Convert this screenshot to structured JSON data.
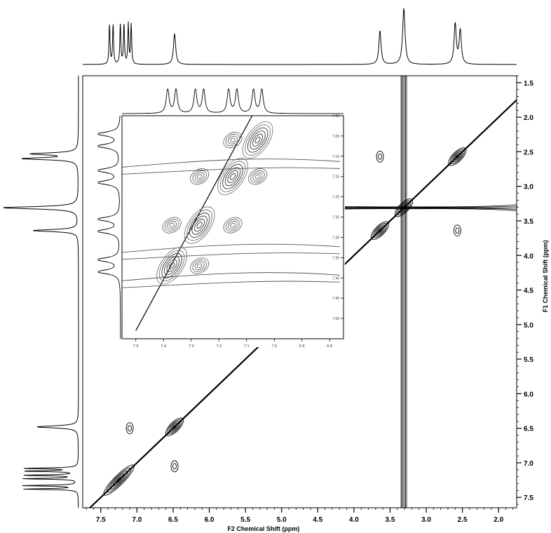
{
  "chart_data": [
    {
      "type": "contour",
      "experiment": "2D homonuclear correlation spectrum",
      "xlabel": "F2 Chemical Shift (ppm)",
      "ylabel": "F1 Chemical Shift (ppm)",
      "xlim": [
        7.75,
        1.75
      ],
      "ylim": [
        1.4,
        7.65
      ],
      "x_ticks": [
        "7.5",
        "7.0",
        "6.5",
        "6.0",
        "5.5",
        "5.0",
        "4.5",
        "4.0",
        "3.5",
        "3.0",
        "2.5",
        "2.0"
      ],
      "y_ticks": [
        "1.5",
        "2.0",
        "2.5",
        "3.0",
        "3.5",
        "4.0",
        "4.5",
        "5.0",
        "5.5",
        "6.0",
        "6.5",
        "7.0",
        "7.5"
      ],
      "x_tick_values": [
        7.5,
        7.0,
        6.5,
        6.0,
        5.5,
        5.0,
        4.5,
        4.0,
        3.5,
        3.0,
        2.5,
        2.0
      ],
      "y_tick_values": [
        1.5,
        2.0,
        2.5,
        3.0,
        3.5,
        4.0,
        4.5,
        5.0,
        5.5,
        6.0,
        6.5,
        7.0,
        7.5
      ],
      "projection_peaks_ppm": [
        7.38,
        7.33,
        7.23,
        7.18,
        7.12,
        7.08,
        6.48,
        3.64,
        3.31,
        2.6,
        2.53
      ],
      "projection_heights": [
        0.72,
        0.72,
        0.72,
        0.72,
        0.72,
        0.72,
        0.55,
        0.6,
        1.0,
        0.72,
        0.6
      ],
      "diagonal_peaks": [
        {
          "x": 7.25,
          "y": 7.25
        },
        {
          "x": 6.48,
          "y": 6.48
        },
        {
          "x": 3.64,
          "y": 3.64
        },
        {
          "x": 3.31,
          "y": 3.31
        },
        {
          "x": 2.57,
          "y": 2.57
        }
      ],
      "cross_peaks": [
        {
          "x": 3.64,
          "y": 2.57
        },
        {
          "x": 2.57,
          "y": 3.64
        },
        {
          "x": 7.1,
          "y": 6.5
        },
        {
          "x": 6.48,
          "y": 7.05
        }
      ],
      "solvent_ridge_ppm": 3.31
    },
    {
      "type": "contour",
      "role": "inset zoom of aromatic region",
      "xlim": [
        7.55,
        6.75
      ],
      "ylim": [
        7.0,
        7.55
      ],
      "x_ticks": [
        "7.5",
        "7.4",
        "7.3",
        "7.2",
        "7.1",
        "7.0",
        "6.9",
        "6.8"
      ],
      "y_ticks": [
        "7.00",
        "7.05",
        "7.10",
        "7.15",
        "7.20",
        "7.25",
        "7.30",
        "7.35",
        "7.40",
        "7.45",
        "7.50"
      ],
      "x_tick_values": [
        7.5,
        7.4,
        7.3,
        7.2,
        7.1,
        7.0,
        6.9,
        6.8
      ],
      "y_tick_values": [
        7.0,
        7.05,
        7.1,
        7.15,
        7.2,
        7.25,
        7.3,
        7.35,
        7.4,
        7.45,
        7.5
      ],
      "projection_peaks_ppm": [
        7.385,
        7.355,
        7.285,
        7.255,
        7.165,
        7.135,
        7.075,
        7.045
      ],
      "diagonal_peaks": [
        {
          "x": 7.37,
          "y": 7.37
        },
        {
          "x": 7.27,
          "y": 7.27
        },
        {
          "x": 7.15,
          "y": 7.15
        },
        {
          "x": 7.06,
          "y": 7.06
        }
      ],
      "cross_peaks": [
        {
          "x": 7.37,
          "y": 7.27
        },
        {
          "x": 7.27,
          "y": 7.37
        },
        {
          "x": 7.15,
          "y": 7.06
        },
        {
          "x": 7.06,
          "y": 7.15
        },
        {
          "x": 7.27,
          "y": 7.15
        },
        {
          "x": 7.15,
          "y": 7.27
        }
      ]
    }
  ]
}
